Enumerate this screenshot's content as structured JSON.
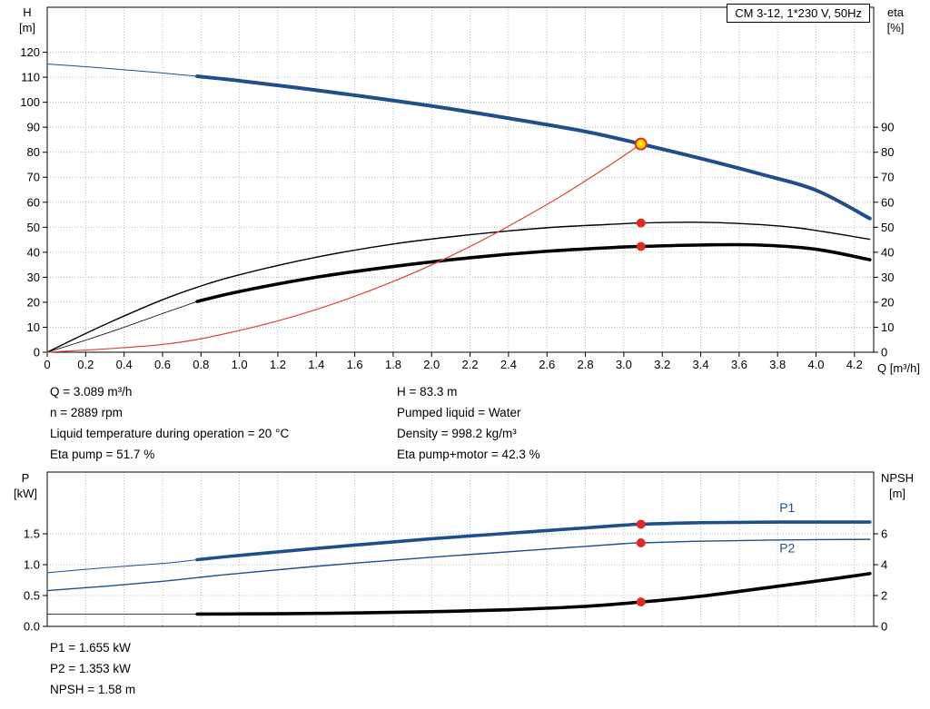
{
  "title_box": "CM 3-12, 1*230 V, 50Hz",
  "colors": {
    "curve_blue": "#1f4e8c",
    "curve_black": "#000000",
    "system_red": "#dd4238",
    "dot_red": "#e02b20",
    "duty_yellow": "#ffe000",
    "grid": "#b8b8b8",
    "axis": "#000000"
  },
  "info": {
    "left": [
      "Q = 3.089 m³/h",
      "n = 2889 rpm",
      "Liquid temperature during operation = 20 °C",
      "Eta pump = 51.7 %"
    ],
    "right": [
      "H = 83.3 m",
      "Pumped liquid = Water",
      "Density = 998.2 kg/m³",
      "Eta pump+motor = 42.3 %"
    ],
    "bottom": [
      "P1 = 1.655 kW",
      "P2 = 1.353 kW",
      "NPSH = 1.58 m"
    ]
  },
  "chart_data": [
    {
      "type": "line",
      "name": "qh-eta-chart",
      "title": "CM 3-12, 1*230 V, 50Hz",
      "x_title": "Q [m³/h]",
      "y_left_title": "H",
      "y_left_unit": "[m]",
      "y_right_title": "eta",
      "y_right_unit": "[%]",
      "x_range": [
        0,
        4.3
      ],
      "y_left_range": [
        0,
        138
      ],
      "y_right_range": [
        0,
        138
      ],
      "grid": true,
      "show_x_labels": true,
      "x_ticks": [
        "0",
        "0.2",
        "0.4",
        "0.6",
        "0.8",
        "1.0",
        "1.2",
        "1.4",
        "1.6",
        "1.8",
        "2.0",
        "2.2",
        "2.4",
        "2.6",
        "2.8",
        "3.0",
        "3.2",
        "3.4",
        "3.6",
        "3.8",
        "4.0",
        "4.2"
      ],
      "y_left_ticks": [
        "0",
        "10",
        "20",
        "30",
        "40",
        "50",
        "60",
        "70",
        "80",
        "90",
        "100",
        "110",
        "120"
      ],
      "y_right_ticks": [
        "0",
        "10",
        "20",
        "30",
        "40",
        "50",
        "60",
        "70",
        "80",
        "90"
      ],
      "series": [
        {
          "name": "head-curve",
          "axis": "left",
          "color": "#1f4e8c",
          "width": 4,
          "thin_until": 0.78,
          "thin_width": 1,
          "points": [
            [
              0,
              115.3
            ],
            [
              0.2,
              114.2
            ],
            [
              0.4,
              113.0
            ],
            [
              0.6,
              111.7
            ],
            [
              0.78,
              110.4
            ],
            [
              1.0,
              108.6
            ],
            [
              1.3,
              105.8
            ],
            [
              1.6,
              102.8
            ],
            [
              2.0,
              98.5
            ],
            [
              2.4,
              93.6
            ],
            [
              2.8,
              88.3
            ],
            [
              3.089,
              83.3
            ],
            [
              3.4,
              77.5
            ],
            [
              3.7,
              71.5
            ],
            [
              4.0,
              64.8
            ],
            [
              4.28,
              53.5
            ]
          ]
        },
        {
          "name": "eta-pump-curve",
          "axis": "right",
          "color": "#000000",
          "width": 1.4,
          "points": [
            [
              0,
              0
            ],
            [
              0.2,
              7.5
            ],
            [
              0.4,
              14.5
            ],
            [
              0.6,
              21
            ],
            [
              0.78,
              26
            ],
            [
              1.0,
              31
            ],
            [
              1.4,
              38
            ],
            [
              1.8,
              43.3
            ],
            [
              2.2,
              47
            ],
            [
              2.6,
              49.8
            ],
            [
              3.0,
              51.4
            ],
            [
              3.089,
              51.7
            ],
            [
              3.35,
              52
            ],
            [
              3.6,
              51.5
            ],
            [
              3.9,
              49.8
            ],
            [
              4.28,
              45.2
            ]
          ]
        },
        {
          "name": "eta-pump-motor-curve",
          "axis": "right",
          "color": "#000000",
          "width": 3.6,
          "thin_until": 0.78,
          "thin_width": 0.8,
          "points": [
            [
              0,
              0
            ],
            [
              0.2,
              4.8
            ],
            [
              0.4,
              10
            ],
            [
              0.6,
              15.5
            ],
            [
              0.78,
              20.3
            ],
            [
              1.0,
              24.3
            ],
            [
              1.4,
              30
            ],
            [
              1.8,
              34.3
            ],
            [
              2.2,
              37.8
            ],
            [
              2.6,
              40.4
            ],
            [
              3.0,
              42.1
            ],
            [
              3.089,
              42.3
            ],
            [
              3.4,
              42.9
            ],
            [
              3.7,
              42.9
            ],
            [
              4.0,
              41.2
            ],
            [
              4.28,
              37
            ]
          ]
        },
        {
          "name": "system-curve",
          "axis": "left",
          "color": "#dd4238",
          "width": 1.2,
          "points": [
            [
              0,
              0
            ],
            [
              0.6,
              3.1
            ],
            [
              1.0,
              8.7
            ],
            [
              1.4,
              17.1
            ],
            [
              1.8,
              28.3
            ],
            [
              2.2,
              42.3
            ],
            [
              2.6,
              59.1
            ],
            [
              2.9,
              73.5
            ],
            [
              3.089,
              83.3
            ]
          ]
        }
      ],
      "markers": [
        {
          "name": "duty-point",
          "q": 3.089,
          "v": 83.3,
          "axis": "left",
          "r": 6,
          "fill": "#ffe000",
          "stroke": "#e02b20",
          "stroke_width": 2
        },
        {
          "name": "eta-pump-point",
          "q": 3.089,
          "v": 51.7,
          "axis": "right",
          "r": 5,
          "fill": "#e02b20"
        },
        {
          "name": "eta-pump-motor-point",
          "q": 3.089,
          "v": 42.3,
          "axis": "right",
          "r": 5,
          "fill": "#e02b20"
        }
      ],
      "labels": []
    },
    {
      "type": "line",
      "name": "power-npsh-chart",
      "x_title": "",
      "y_left_title": "P",
      "y_left_unit": "[kW]",
      "y_right_title": "NPSH",
      "y_right_unit": "[m]",
      "x_range": [
        0,
        4.3
      ],
      "y_left_range": [
        0,
        2.5
      ],
      "y_right_range": [
        0,
        10
      ],
      "grid": true,
      "show_x_labels": false,
      "x_ticks": [
        "0",
        "0.2",
        "0.4",
        "0.6",
        "0.8",
        "1.0",
        "1.2",
        "1.4",
        "1.6",
        "1.8",
        "2.0",
        "2.2",
        "2.4",
        "2.6",
        "2.8",
        "3.0",
        "3.2",
        "3.4",
        "3.6",
        "3.8",
        "4.0",
        "4.2"
      ],
      "y_left_ticks": [
        "0.0",
        "0.5",
        "1.0",
        "1.5"
      ],
      "y_right_ticks": [
        "0",
        "2",
        "4",
        "6"
      ],
      "series": [
        {
          "name": "p1-curve",
          "axis": "left",
          "color": "#1f4e8c",
          "width": 3.6,
          "thin_until": 0.78,
          "thin_width": 1,
          "points": [
            [
              0,
              0.87
            ],
            [
              0.3,
              0.95
            ],
            [
              0.6,
              1.02
            ],
            [
              0.78,
              1.08
            ],
            [
              1.0,
              1.15
            ],
            [
              1.5,
              1.29
            ],
            [
              2.0,
              1.42
            ],
            [
              2.5,
              1.53
            ],
            [
              3.0,
              1.64
            ],
            [
              3.089,
              1.655
            ],
            [
              3.4,
              1.68
            ],
            [
              3.8,
              1.69
            ],
            [
              4.28,
              1.69
            ]
          ]
        },
        {
          "name": "p2-curve",
          "axis": "left",
          "color": "#1f4e8c",
          "width": 1.4,
          "points": [
            [
              0,
              0.58
            ],
            [
              0.3,
              0.65
            ],
            [
              0.6,
              0.73
            ],
            [
              0.78,
              0.79
            ],
            [
              1.0,
              0.86
            ],
            [
              1.5,
              1.0
            ],
            [
              2.0,
              1.12
            ],
            [
              2.5,
              1.23
            ],
            [
              3.0,
              1.34
            ],
            [
              3.089,
              1.353
            ],
            [
              3.4,
              1.38
            ],
            [
              3.8,
              1.4
            ],
            [
              4.28,
              1.41
            ]
          ]
        },
        {
          "name": "npsh-curve",
          "axis": "right",
          "color": "#000000",
          "width": 3.6,
          "thin_until": 0.78,
          "thin_width": 0.8,
          "points": [
            [
              0,
              0.8
            ],
            [
              0.78,
              0.8
            ],
            [
              1.2,
              0.82
            ],
            [
              1.6,
              0.87
            ],
            [
              2.0,
              0.95
            ],
            [
              2.4,
              1.08
            ],
            [
              2.8,
              1.3
            ],
            [
              3.089,
              1.58
            ],
            [
              3.4,
              1.95
            ],
            [
              3.8,
              2.6
            ],
            [
              4.1,
              3.1
            ],
            [
              4.28,
              3.42
            ]
          ]
        }
      ],
      "markers": [
        {
          "name": "p1-point",
          "q": 3.089,
          "v": 1.655,
          "axis": "left",
          "r": 5,
          "fill": "#e02b20"
        },
        {
          "name": "p2-point",
          "q": 3.089,
          "v": 1.353,
          "axis": "left",
          "r": 5,
          "fill": "#e02b20"
        },
        {
          "name": "npsh-point",
          "q": 3.089,
          "v": 1.58,
          "axis": "right",
          "r": 5,
          "fill": "#e02b20"
        }
      ],
      "labels": [
        {
          "text": "P1",
          "q": 3.85,
          "v": 1.85,
          "axis": "left",
          "color": "#1f4e8c"
        },
        {
          "text": "P2",
          "q": 3.85,
          "v": 1.2,
          "axis": "left",
          "color": "#1f4e8c"
        }
      ]
    }
  ]
}
